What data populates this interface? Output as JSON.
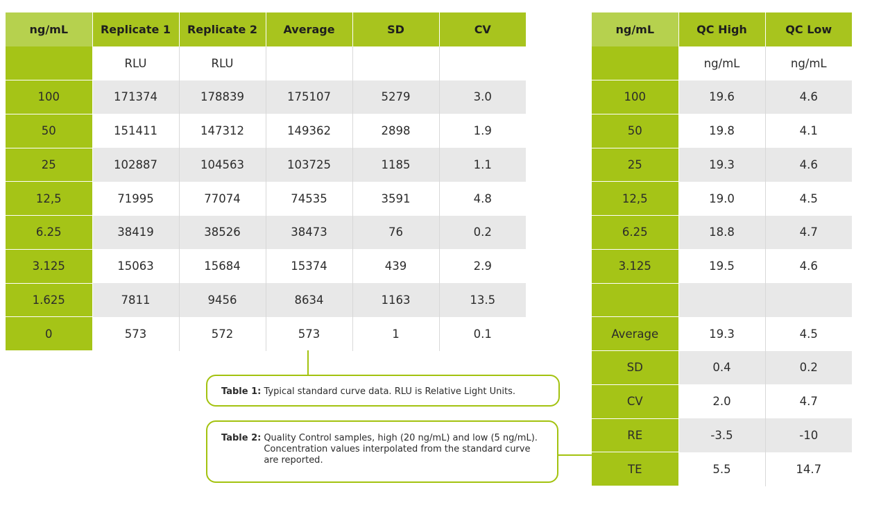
{
  "table1": {
    "headers": [
      "ng/mL",
      "Replicate 1",
      "Replicate 2",
      "Average",
      "SD",
      "CV"
    ],
    "units": [
      "",
      "RLU",
      "RLU",
      "",
      "",
      ""
    ],
    "rows": [
      [
        "100",
        "171374",
        "178839",
        "175107",
        "5279",
        "3.0"
      ],
      [
        "50",
        "151411",
        "147312",
        "149362",
        "2898",
        "1.9"
      ],
      [
        "25",
        "102887",
        "104563",
        "103725",
        "1185",
        "1.1"
      ],
      [
        "12,5",
        "71995",
        "77074",
        "74535",
        "3591",
        "4.8"
      ],
      [
        "6.25",
        "38419",
        "38526",
        "38473",
        "76",
        "0.2"
      ],
      [
        "3.125",
        "15063",
        "15684",
        "15374",
        "439",
        "2.9"
      ],
      [
        "1.625",
        "7811",
        "9456",
        "8634",
        "1163",
        "13.5"
      ],
      [
        "0",
        "573",
        "572",
        "573",
        "1",
        "0.1"
      ]
    ]
  },
  "table2": {
    "headers": [
      "ng/mL",
      "QC High",
      "QC Low"
    ],
    "units": [
      "",
      "ng/mL",
      "ng/mL"
    ],
    "rows": [
      [
        "100",
        "19.6",
        "4.6"
      ],
      [
        "50",
        "19.8",
        "4.1"
      ],
      [
        "25",
        "19.3",
        "4.6"
      ],
      [
        "12,5",
        "19.0",
        "4.5"
      ],
      [
        "6.25",
        "18.8",
        "4.7"
      ],
      [
        "3.125",
        "19.5",
        "4.6"
      ],
      [
        "",
        "",
        ""
      ],
      [
        "Average",
        "19.3",
        "4.5"
      ],
      [
        "SD",
        "0.4",
        "0.2"
      ],
      [
        "CV",
        "2.0",
        "4.7"
      ],
      [
        "RE",
        "-3.5",
        "-10"
      ],
      [
        "TE",
        "5.5",
        "14.7"
      ]
    ]
  },
  "captions": {
    "table1_key": "Table 1:",
    "table1_text": "Typical standard curve data.  RLU is Relative Light Units.",
    "table2_key": "Table 2:",
    "table2_text": "Quality Control samples, high (20 ng/mL) and low (5 ng/mL).  Concentration values interpolated from the standard curve are reported."
  },
  "colors": {
    "accent_green": "#a3c20f",
    "header_light_green": "#b6d14e",
    "row_stripe_gray": "#e8e8e8"
  }
}
